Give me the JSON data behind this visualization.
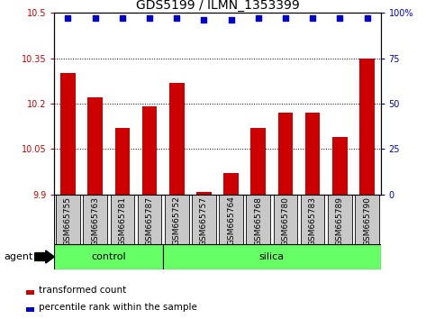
{
  "title": "GDS5199 / ILMN_1353399",
  "samples": [
    "GSM665755",
    "GSM665763",
    "GSM665781",
    "GSM665787",
    "GSM665752",
    "GSM665757",
    "GSM665764",
    "GSM665768",
    "GSM665780",
    "GSM665783",
    "GSM665789",
    "GSM665790"
  ],
  "transformed_counts": [
    10.3,
    10.22,
    10.12,
    10.19,
    10.27,
    9.91,
    9.97,
    10.12,
    10.17,
    10.17,
    10.09,
    10.35
  ],
  "percentile_ranks": [
    97,
    97,
    97,
    97,
    97,
    96,
    96,
    97,
    97,
    97,
    97,
    97
  ],
  "groups": [
    {
      "label": "control",
      "start": 0,
      "end": 3
    },
    {
      "label": "silica",
      "start": 4,
      "end": 11
    }
  ],
  "ylim_left": [
    9.9,
    10.5
  ],
  "ylim_right": [
    0,
    100
  ],
  "yticks_left": [
    9.9,
    10.05,
    10.2,
    10.35,
    10.5
  ],
  "yticks_right": [
    0,
    25,
    50,
    75,
    100
  ],
  "bar_color": "#CC0000",
  "dot_color": "#0000CC",
  "group_color": "#66FF66",
  "bg_color": "#C8C8C8",
  "agent_label": "agent",
  "legend_bar_label": "transformed count",
  "legend_dot_label": "percentile rank within the sample",
  "title_fontsize": 10,
  "tick_fontsize": 7,
  "label_fontsize": 6.5,
  "group_fontsize": 8,
  "legend_fontsize": 7.5
}
